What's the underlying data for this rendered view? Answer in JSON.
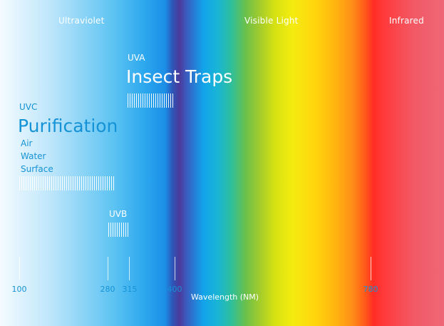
{
  "regions": {
    "ultraviolet": "Ultraviolet",
    "visible": "Visible Light",
    "infrared": "Infrared"
  },
  "uva": {
    "band": "UVA",
    "application": "Insect Traps"
  },
  "uvc": {
    "band": "UVC",
    "application": "Purification",
    "uses": [
      "Air",
      "Water",
      "Surface"
    ]
  },
  "uvb": {
    "band": "UVB"
  },
  "axis": {
    "title": "Wavelength (NM)",
    "ticks": [
      "100",
      "280",
      "315",
      "400",
      "780"
    ]
  },
  "colors": {
    "label_blue": "#1593d6",
    "label_white": "#ffffff"
  }
}
